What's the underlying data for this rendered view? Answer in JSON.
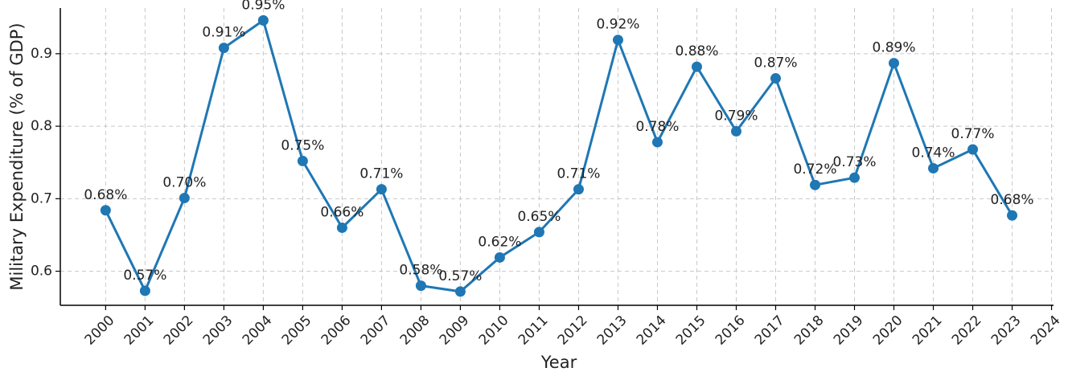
{
  "chart_data": {
    "type": "line",
    "x_label": "Year",
    "y_label": "Military Expenditure (% of GDP)",
    "x": [
      2000,
      2001,
      2002,
      2003,
      2004,
      2005,
      2006,
      2007,
      2008,
      2009,
      2010,
      2011,
      2012,
      2013,
      2014,
      2015,
      2016,
      2017,
      2018,
      2019,
      2020,
      2021,
      2022,
      2023
    ],
    "series": [
      {
        "name": "Military Expenditure",
        "color": "#1f77b4",
        "values": [
          0.684,
          0.573,
          0.701,
          0.908,
          0.946,
          0.752,
          0.66,
          0.713,
          0.58,
          0.572,
          0.619,
          0.654,
          0.713,
          0.919,
          0.778,
          0.882,
          0.793,
          0.866,
          0.719,
          0.729,
          0.887,
          0.742,
          0.768,
          0.677
        ],
        "value_labels": [
          "0.68%",
          "0.57%",
          "0.70%",
          "0.91%",
          "0.95%",
          "0.75%",
          "0.66%",
          "0.71%",
          "0.58%",
          "0.57%",
          "0.62%",
          "0.65%",
          "0.71%",
          "0.92%",
          "0.78%",
          "0.88%",
          "0.79%",
          "0.87%",
          "0.72%",
          "0.73%",
          "0.89%",
          "0.74%",
          "0.77%",
          "0.68%"
        ]
      }
    ],
    "xlim": [
      1998.85,
      2024.05
    ],
    "ylim": [
      0.553,
      0.963
    ],
    "xticks": [
      2000,
      2001,
      2002,
      2003,
      2004,
      2005,
      2006,
      2007,
      2008,
      2009,
      2010,
      2011,
      2012,
      2013,
      2014,
      2015,
      2016,
      2017,
      2018,
      2019,
      2020,
      2021,
      2022,
      2023,
      2024
    ],
    "yticks": [
      0.6,
      0.7,
      0.8,
      0.9
    ],
    "grid": true
  }
}
